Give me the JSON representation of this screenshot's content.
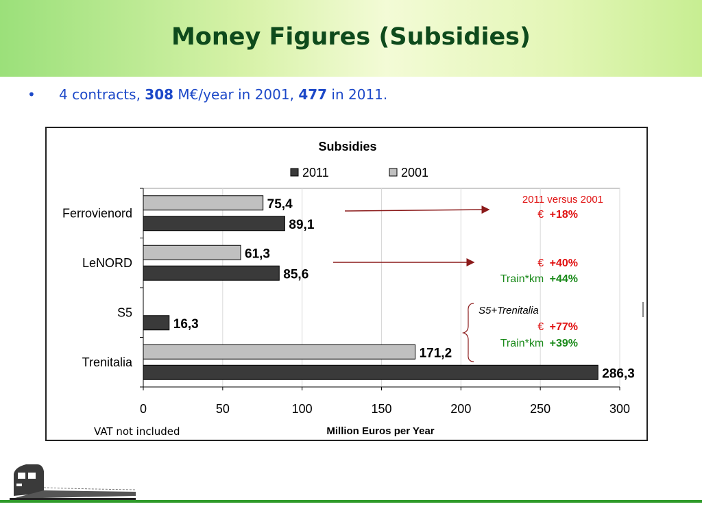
{
  "slide": {
    "title": "Money Figures (Subsidies)",
    "bullet": {
      "bullet_char": "•",
      "pre": "4 contracts, ",
      "value_2001": "308",
      "mid": " M€/year in 2001, ",
      "value_2011": "477",
      "post": " in 2011."
    },
    "note": "VAT not included"
  },
  "chart_data": {
    "type": "bar",
    "orientation": "horizontal",
    "title": "Subsidies",
    "xlabel": "Million Euros per Year",
    "ylabel": "",
    "xlim": [
      0,
      300
    ],
    "xticks": [
      "0",
      "50",
      "100",
      "150",
      "200",
      "250",
      "300"
    ],
    "grid": true,
    "legend_position": "top",
    "categories": [
      "Ferrovienord",
      "LeNORD",
      "S5",
      "Trenitalia"
    ],
    "series": [
      {
        "name": "2011",
        "color": "#3a3a3a",
        "values": [
          89.1,
          85.6,
          16.3,
          286.3
        ],
        "labels": [
          "89,1",
          "85,6",
          "16,3",
          "286,3"
        ]
      },
      {
        "name": "2001",
        "color": "#c0c0c0",
        "values": [
          75.4,
          61.3,
          null,
          171.2
        ],
        "labels": [
          "75,4",
          "61,3",
          "",
          "171,2"
        ]
      }
    ],
    "annotations": {
      "header": "2011 versus 2001",
      "ferrovienord": {
        "euro_label": "€",
        "euro_value": "+18%"
      },
      "lenord": {
        "euro_label": "€",
        "euro_value": "+40%",
        "train_label": "Train*km",
        "train_value": "+44%"
      },
      "s5_trenitalia": {
        "group_label": "S5+Trenitalia",
        "euro_label": "€",
        "euro_value": "+77%",
        "train_label": "Train*km",
        "train_value": "+39%"
      }
    },
    "colors": {
      "annotation_red": "#e01010",
      "annotation_green": "#1a8a1a",
      "arrow": "#8b1a1a"
    }
  }
}
